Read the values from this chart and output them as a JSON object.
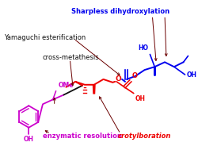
{
  "labels": {
    "sharpless": "Sharpless dihydroxylation",
    "yamaguchi": "Yamaguchi esterification",
    "cross": "cross-metathesis",
    "ome": "OMe",
    "enzymatic": "enzymatic resolution",
    "crotyl": "crotylboration",
    "ho": "HO",
    "oh_blue": "OH",
    "oh_red": "OH",
    "o_ester": "O",
    "o_ring": "O",
    "o_carbonyl": "O"
  },
  "colors": {
    "blue": "#0000EE",
    "red": "#EE0000",
    "magenta": "#CC00CC",
    "black": "#111111",
    "arrow": "#6B0000"
  },
  "bg_color": "#FFFFFF"
}
